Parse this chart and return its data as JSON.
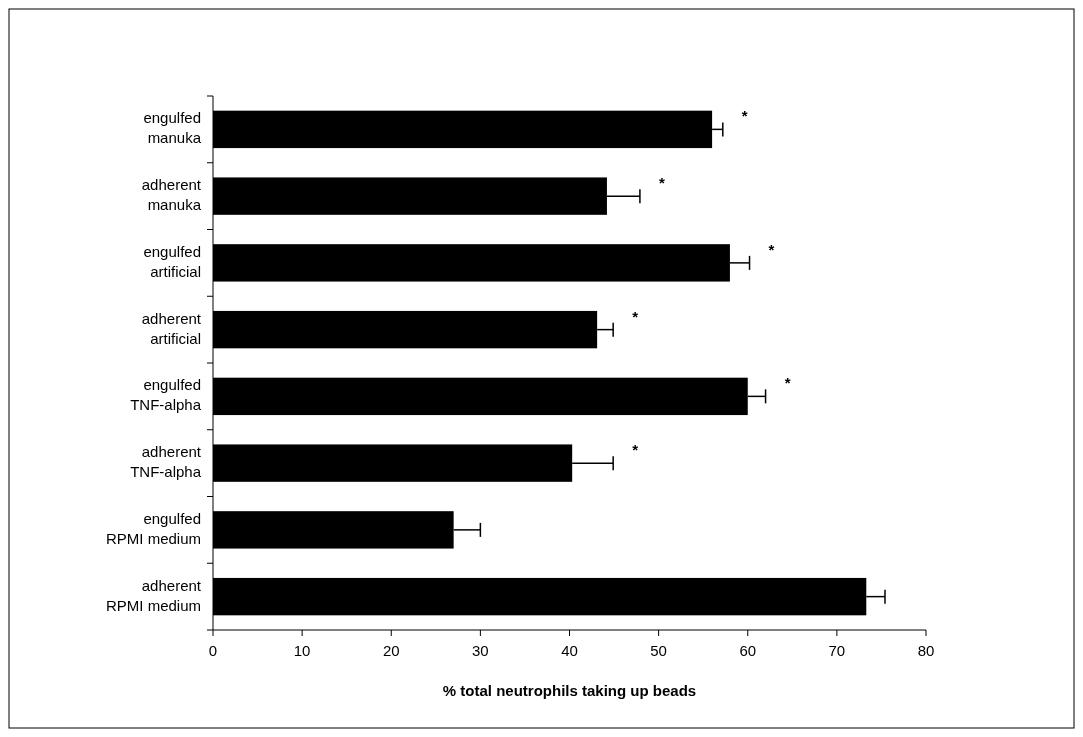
{
  "chart_data": {
    "type": "bar",
    "orientation": "horizontal",
    "xlabel": "% total neutrophils taking up beads",
    "categories": [
      "engulfed manuka",
      "adherent manuka",
      "engulfed artificial",
      "adherent artificial",
      "engulfed TNF-alpha",
      "adherent TNF-alpha",
      "engulfed RPMI medium",
      "adherent RPMI medium"
    ],
    "values": [
      56.0,
      44.2,
      58.0,
      43.1,
      60.0,
      40.3,
      27.0,
      73.3
    ],
    "errors": [
      [
        56.0,
        57.2
      ],
      [
        44.2,
        47.9
      ],
      [
        58.0,
        60.2
      ],
      [
        43.1,
        44.9
      ],
      [
        60.0,
        62.0
      ],
      [
        40.3,
        44.9
      ],
      [
        27.0,
        30.0
      ],
      [
        73.3,
        75.4
      ]
    ],
    "color": "#000000",
    "xlim": [
      0,
      80
    ],
    "xticks": [
      0,
      10,
      20,
      30,
      40,
      50,
      60,
      70,
      80
    ],
    "grid": false,
    "annotations": [
      "*",
      "*",
      "*",
      "*",
      "*",
      "*"
    ]
  }
}
